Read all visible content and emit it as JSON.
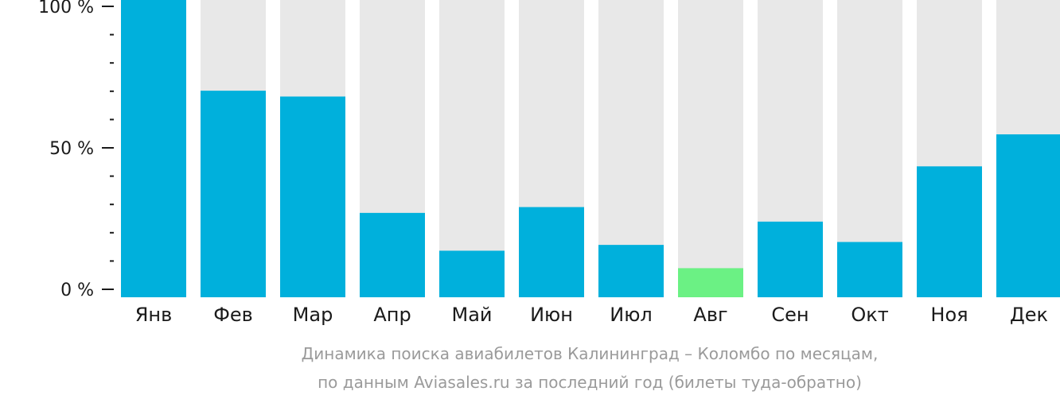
{
  "chart_data": {
    "type": "bar",
    "categories": [
      "Янв",
      "Фев",
      "Мар",
      "Апр",
      "Май",
      "Июн",
      "Июл",
      "Авг",
      "Сен",
      "Окт",
      "Ноя",
      "Дек"
    ],
    "values": [
      100,
      71,
      69,
      29,
      16,
      31,
      18,
      10,
      26,
      19,
      45,
      56
    ],
    "highlight_index": 7,
    "ylim": [
      0,
      100
    ],
    "y_ticks": [
      {
        "value": 100,
        "label": "100 %"
      },
      {
        "value": 50,
        "label": "50 %"
      },
      {
        "value": 0,
        "label": "0 %"
      }
    ],
    "y_minor_step": 10,
    "colors": {
      "bar": "#00b0dc",
      "highlight": "#6bf184",
      "background_bar": "#e8e8e8",
      "axis": "#1a1a1a",
      "caption": "#9a9a9a"
    },
    "caption": [
      "Динамика поиска авиабилетов Калининград – Коломбо по месяцам,",
      "по данным Aviasales.ru за последний год (билеты туда-обратно)"
    ]
  }
}
